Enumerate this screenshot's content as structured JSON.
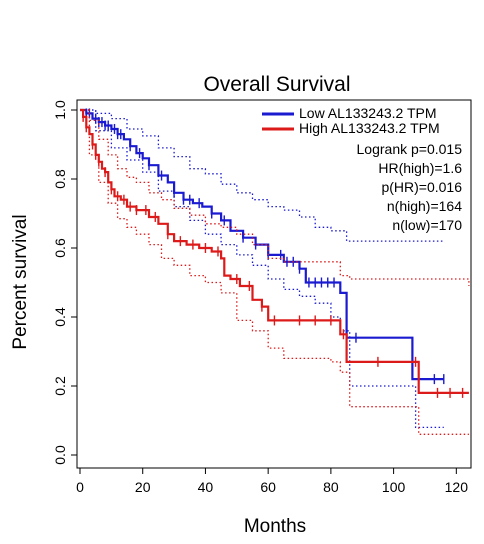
{
  "chart_data": {
    "type": "line",
    "subtype": "kaplan-meier",
    "title": "Overall Survival",
    "xlabel": "Months",
    "ylabel": "Percent survival",
    "xlim": [
      0,
      125
    ],
    "ylim": [
      0,
      1.0
    ],
    "x_ticks": [
      0,
      20,
      40,
      60,
      80,
      100,
      120
    ],
    "y_ticks": [
      "0.0",
      "0.2",
      "0.4",
      "0.6",
      "0.8",
      "1.0"
    ],
    "grid": false,
    "legend_position": "top-right",
    "series": [
      {
        "name": "Low AL133243.2 TPM",
        "color": "#1a1ad0",
        "curve": [
          [
            0,
            1.0
          ],
          [
            2,
            0.99
          ],
          [
            4,
            0.975
          ],
          [
            6,
            0.965
          ],
          [
            8,
            0.955
          ],
          [
            10,
            0.945
          ],
          [
            12,
            0.93
          ],
          [
            14,
            0.915
          ],
          [
            16,
            0.895
          ],
          [
            18,
            0.875
          ],
          [
            20,
            0.86
          ],
          [
            22,
            0.84
          ],
          [
            25,
            0.81
          ],
          [
            28,
            0.79
          ],
          [
            30,
            0.76
          ],
          [
            33,
            0.74
          ],
          [
            36,
            0.73
          ],
          [
            39,
            0.72
          ],
          [
            42,
            0.7
          ],
          [
            45,
            0.68
          ],
          [
            48,
            0.65
          ],
          [
            52,
            0.63
          ],
          [
            56,
            0.61
          ],
          [
            60,
            0.58
          ],
          [
            65,
            0.56
          ],
          [
            70,
            0.54
          ],
          [
            72,
            0.5
          ],
          [
            80,
            0.5
          ],
          [
            83,
            0.47
          ],
          [
            85,
            0.34
          ],
          [
            105,
            0.34
          ],
          [
            106,
            0.22
          ],
          [
            116,
            0.22
          ]
        ],
        "ci_upper": [
          [
            0,
            1.0
          ],
          [
            5,
            0.99
          ],
          [
            10,
            0.975
          ],
          [
            15,
            0.945
          ],
          [
            20,
            0.925
          ],
          [
            25,
            0.89
          ],
          [
            30,
            0.865
          ],
          [
            35,
            0.83
          ],
          [
            40,
            0.815
          ],
          [
            45,
            0.785
          ],
          [
            50,
            0.76
          ],
          [
            55,
            0.74
          ],
          [
            60,
            0.72
          ],
          [
            65,
            0.71
          ],
          [
            70,
            0.69
          ],
          [
            75,
            0.66
          ],
          [
            80,
            0.65
          ],
          [
            85,
            0.62
          ],
          [
            116,
            0.62
          ]
        ],
        "ci_lower": [
          [
            0,
            1.0
          ],
          [
            5,
            0.94
          ],
          [
            10,
            0.89
          ],
          [
            15,
            0.855
          ],
          [
            20,
            0.82
          ],
          [
            25,
            0.765
          ],
          [
            30,
            0.72
          ],
          [
            35,
            0.68
          ],
          [
            40,
            0.64
          ],
          [
            45,
            0.61
          ],
          [
            50,
            0.58
          ],
          [
            55,
            0.55
          ],
          [
            60,
            0.51
          ],
          [
            65,
            0.48
          ],
          [
            70,
            0.46
          ],
          [
            75,
            0.44
          ],
          [
            80,
            0.4
          ],
          [
            83,
            0.36
          ],
          [
            86,
            0.2
          ],
          [
            105,
            0.2
          ],
          [
            107,
            0.08
          ],
          [
            116,
            0.08
          ]
        ],
        "censor_x": [
          2,
          3,
          5,
          6,
          7,
          8,
          9,
          11,
          12,
          13,
          16,
          19,
          22,
          26,
          30,
          33,
          35,
          38,
          42,
          46,
          52,
          56,
          60,
          64,
          66,
          68,
          70,
          73,
          75,
          77,
          79,
          81,
          88,
          113,
          116
        ]
      },
      {
        "name": "High AL133243.2 TPM",
        "color": "#dd1a1a",
        "curve": [
          [
            0,
            1.0
          ],
          [
            1,
            0.98
          ],
          [
            2,
            0.95
          ],
          [
            3,
            0.93
          ],
          [
            4,
            0.9
          ],
          [
            5,
            0.87
          ],
          [
            6,
            0.85
          ],
          [
            7,
            0.83
          ],
          [
            8,
            0.82
          ],
          [
            9,
            0.79
          ],
          [
            10,
            0.77
          ],
          [
            11,
            0.75
          ],
          [
            13,
            0.74
          ],
          [
            15,
            0.72
          ],
          [
            18,
            0.71
          ],
          [
            22,
            0.69
          ],
          [
            25,
            0.67
          ],
          [
            28,
            0.64
          ],
          [
            30,
            0.62
          ],
          [
            34,
            0.61
          ],
          [
            38,
            0.6
          ],
          [
            42,
            0.59
          ],
          [
            45,
            0.57
          ],
          [
            46,
            0.52
          ],
          [
            48,
            0.51
          ],
          [
            51,
            0.49
          ],
          [
            55,
            0.45
          ],
          [
            58,
            0.43
          ],
          [
            60,
            0.39
          ],
          [
            80,
            0.39
          ],
          [
            83,
            0.35
          ],
          [
            85,
            0.27
          ],
          [
            106,
            0.27
          ],
          [
            108,
            0.18
          ],
          [
            124,
            0.18
          ]
        ],
        "ci_upper": [
          [
            0,
            1.0
          ],
          [
            3,
            0.97
          ],
          [
            6,
            0.915
          ],
          [
            9,
            0.87
          ],
          [
            12,
            0.83
          ],
          [
            15,
            0.805
          ],
          [
            18,
            0.79
          ],
          [
            22,
            0.76
          ],
          [
            26,
            0.74
          ],
          [
            30,
            0.715
          ],
          [
            35,
            0.695
          ],
          [
            40,
            0.67
          ],
          [
            45,
            0.66
          ],
          [
            50,
            0.64
          ],
          [
            55,
            0.61
          ],
          [
            60,
            0.57
          ],
          [
            65,
            0.56
          ],
          [
            80,
            0.56
          ],
          [
            83,
            0.52
          ],
          [
            86,
            0.51
          ],
          [
            124,
            0.49
          ]
        ],
        "ci_lower": [
          [
            0,
            1.0
          ],
          [
            3,
            0.87
          ],
          [
            6,
            0.79
          ],
          [
            9,
            0.73
          ],
          [
            12,
            0.685
          ],
          [
            15,
            0.66
          ],
          [
            18,
            0.64
          ],
          [
            22,
            0.61
          ],
          [
            26,
            0.57
          ],
          [
            30,
            0.55
          ],
          [
            35,
            0.52
          ],
          [
            40,
            0.5
          ],
          [
            45,
            0.47
          ],
          [
            50,
            0.39
          ],
          [
            55,
            0.36
          ],
          [
            60,
            0.31
          ],
          [
            65,
            0.28
          ],
          [
            80,
            0.27
          ],
          [
            83,
            0.24
          ],
          [
            86,
            0.14
          ],
          [
            106,
            0.14
          ],
          [
            108,
            0.06
          ],
          [
            124,
            0.06
          ]
        ],
        "censor_x": [
          1,
          2,
          4,
          5,
          6,
          8,
          10,
          12,
          14,
          16,
          18,
          21,
          24,
          28,
          32,
          36,
          40,
          44,
          50,
          54,
          58,
          62,
          70,
          75,
          80,
          84,
          95,
          107,
          114,
          118,
          122
        ]
      }
    ],
    "stats": [
      "Logrank p=0.015",
      "HR(high)=1.6",
      "p(HR)=0.016",
      "n(high)=164",
      "n(low)=170"
    ]
  }
}
